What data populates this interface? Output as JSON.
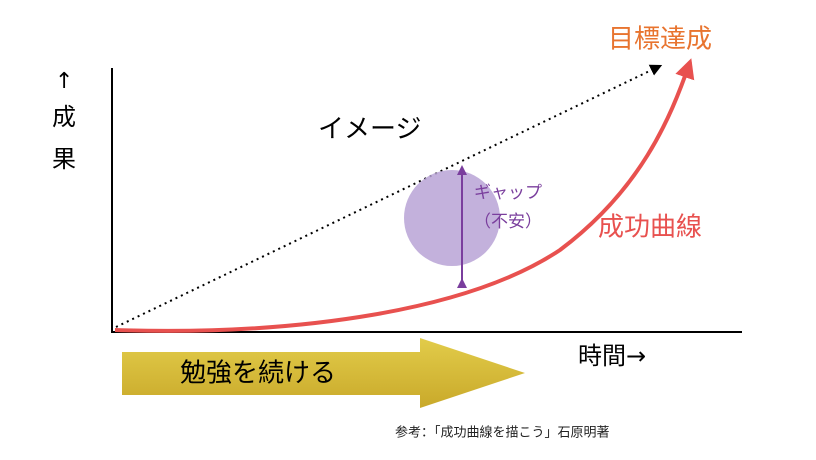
{
  "y_axis_label": [
    "↑",
    "成",
    "果"
  ],
  "x_axis_label": "時間→",
  "goal": "目標達成",
  "image_line": "イメージ",
  "gap": [
    "ギャップ",
    "（不安）"
  ],
  "success_curve": "成功曲線",
  "arrow_text": "勉強を続ける",
  "reference": "参考：「成功曲線を描こう」石原明著"
}
